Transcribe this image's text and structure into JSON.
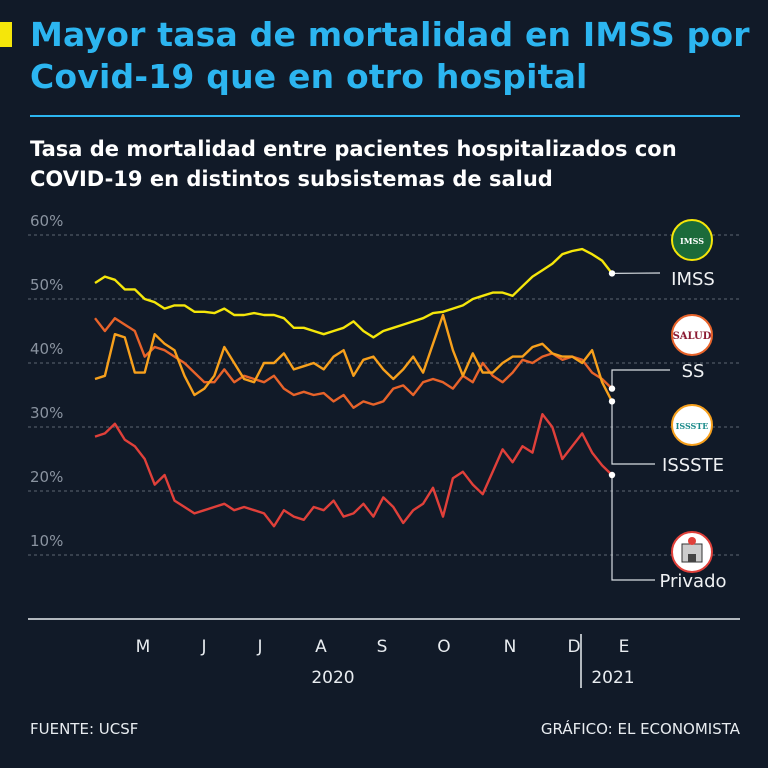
{
  "header": {
    "title": "Mayor tasa de mortalidad en IMSS por Covid-19 que en otro hospital",
    "subtitle": "Tasa de mortalidad entre pacientes hospitalizados con COVID-19 en distintos subsistemas de salud"
  },
  "footer": {
    "source": "FUENTE: UCSF",
    "credit": "GRÁFICO: EL ECONOMISTA"
  },
  "chart_data": {
    "type": "line",
    "title": "Tasa de mortalidad entre pacientes hospitalizados con COVID-19 en distintos subsistemas de salud",
    "xlabel": "",
    "ylabel": "",
    "ylim": [
      10,
      60
    ],
    "y_ticks": [
      "10%",
      "20%",
      "30%",
      "40%",
      "50%",
      "60%"
    ],
    "y_tick_values": [
      10,
      20,
      30,
      40,
      50,
      60
    ],
    "grid": true,
    "x_unit": "period index (approx. weekly, Apr 2020 – Jan 2021)",
    "xlim": [
      0,
      51.7
    ],
    "x_ticks": [
      {
        "label": "M",
        "x": 2.4
      },
      {
        "label": "J",
        "x": 8.5
      },
      {
        "label": "J",
        "x": 14.1
      },
      {
        "label": "A",
        "x": 20.2
      },
      {
        "label": "S",
        "x": 26.3
      },
      {
        "label": "O",
        "x": 32.5
      },
      {
        "label": "N",
        "x": 39.1
      },
      {
        "label": "D",
        "x": 45.5
      },
      {
        "label": "E",
        "x": 50.5
      }
    ],
    "years": [
      {
        "label": "2020",
        "x": 23.8
      },
      {
        "label": "2021",
        "x": 51.8
      }
    ],
    "year_separator_x": 48.6,
    "series": [
      {
        "name": "IMSS",
        "color": "#f5e60a",
        "values": [
          52.5,
          53.5,
          53,
          51.5,
          51.5,
          50,
          49.5,
          48.5,
          49,
          49,
          48,
          48,
          47.8,
          48.5,
          47.5,
          47.5,
          47.8,
          47.5,
          47.5,
          47,
          45.5,
          45.5,
          45,
          44.5,
          45,
          45.5,
          46.5,
          45,
          44,
          45,
          45.5,
          46,
          46.5,
          47,
          47.8,
          48,
          48.5,
          49,
          50,
          50.5,
          51,
          51,
          50.5,
          52,
          53.5,
          54.5,
          55.5,
          57,
          57.5,
          57.8,
          57,
          56,
          54
        ]
      },
      {
        "name": "SS",
        "color": "#e8632a",
        "values": [
          47,
          45,
          47,
          46,
          45,
          41,
          42.5,
          42,
          41,
          40,
          38.5,
          37,
          37,
          39,
          37,
          38,
          37.5,
          37,
          38,
          36,
          35,
          35.5,
          35,
          35.3,
          34,
          35,
          33,
          34,
          33.5,
          34,
          36,
          36.5,
          35,
          37,
          37.5,
          37,
          36,
          38,
          37,
          40,
          38,
          37,
          38.5,
          40.5,
          40,
          41,
          41.5,
          40.5,
          41,
          40.5,
          38.5,
          37.5,
          36
        ]
      },
      {
        "name": "ISSSTE",
        "color": "#f7a01c",
        "values": [
          37.5,
          38,
          44.5,
          44,
          38.5,
          38.5,
          44.5,
          43,
          42,
          38,
          35,
          36,
          38,
          42.5,
          40,
          37.5,
          37,
          40,
          40,
          41.5,
          39,
          39.5,
          40,
          39,
          41,
          42,
          38,
          40.5,
          41,
          39,
          37.5,
          39,
          41,
          38.5,
          43,
          47.5,
          42,
          38,
          41.5,
          38.5,
          38.5,
          40,
          41,
          41,
          42.5,
          43,
          41.5,
          41,
          41,
          40,
          42,
          37,
          34
        ]
      },
      {
        "name": "Privado",
        "color": "#e0403a",
        "values": [
          28.5,
          29,
          30.5,
          28,
          27,
          25,
          21,
          22.5,
          18.5,
          17.5,
          16.5,
          17,
          17.5,
          18,
          17,
          17.5,
          17,
          16.5,
          14.5,
          17,
          16,
          15.5,
          17.5,
          17,
          18.5,
          16,
          16.5,
          18,
          16,
          19,
          17.5,
          15,
          17,
          18,
          20.5,
          16,
          22,
          23,
          21,
          19.5,
          23,
          26.5,
          24.5,
          27,
          26,
          32,
          30,
          25,
          27,
          29,
          26,
          24,
          22.5
        ]
      }
    ],
    "legend": [
      {
        "name": "IMSS",
        "icon": "imss-logo-icon",
        "logo_text": "IMSS"
      },
      {
        "name": "SS",
        "icon": "salud-logo-icon",
        "logo_text": "SALUD"
      },
      {
        "name": "ISSSTE",
        "icon": "issste-logo-icon",
        "logo_text": "ISSSTE"
      },
      {
        "name": "Privado",
        "icon": "hospital-icon"
      }
    ],
    "legend_placement": "right"
  }
}
